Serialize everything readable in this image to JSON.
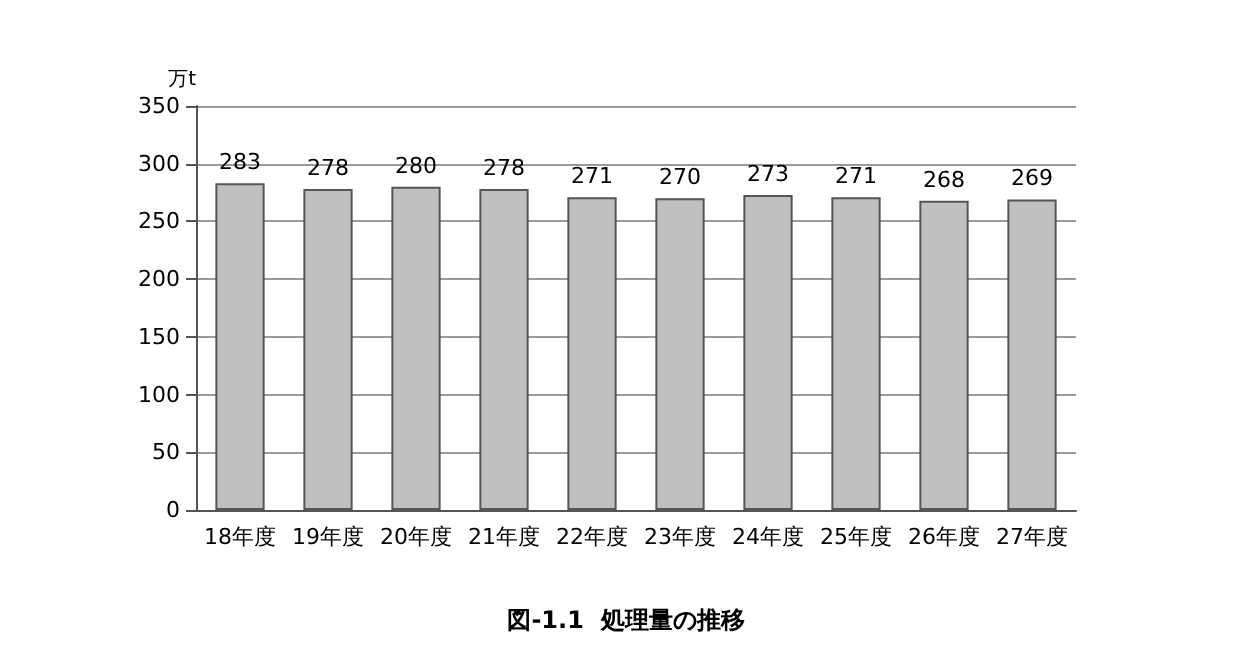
{
  "chart_data": {
    "type": "bar",
    "title": "図-1.1  処理量の推移",
    "ylabel": "万t",
    "categories": [
      "18年度",
      "19年度",
      "20年度",
      "21年度",
      "22年度",
      "23年度",
      "24年度",
      "25年度",
      "26年度",
      "27年度"
    ],
    "values": [
      283,
      278,
      280,
      278,
      271,
      270,
      273,
      271,
      268,
      269
    ],
    "color": "#c0c0c0",
    "ylim": [
      0,
      350
    ],
    "yticks": [
      0,
      50,
      100,
      150,
      200,
      250,
      300,
      350
    ],
    "grid": "y",
    "data_labels": true
  }
}
